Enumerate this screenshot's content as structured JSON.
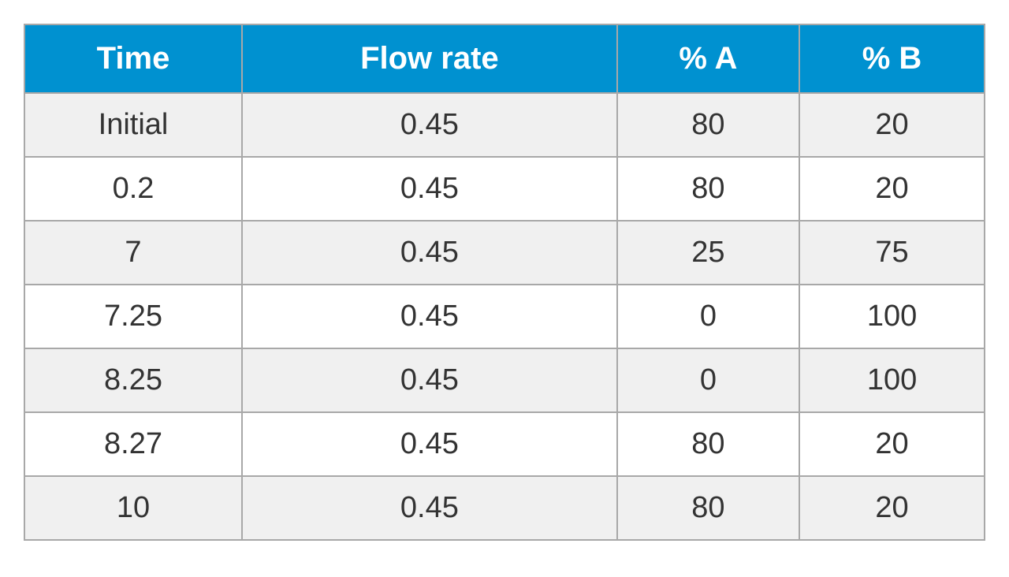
{
  "table": {
    "type": "table",
    "header_bg_color": "#0091d0",
    "header_text_color": "#ffffff",
    "row_odd_bg_color": "#f0f0f0",
    "row_even_bg_color": "#ffffff",
    "border_color": "#a8a8a8",
    "cell_text_color": "#333333",
    "header_fontsize": 40,
    "cell_fontsize": 38,
    "columns": [
      "Time",
      "Flow rate",
      "% A",
      "% B"
    ],
    "rows": [
      [
        "Initial",
        "0.45",
        "80",
        "20"
      ],
      [
        "0.2",
        "0.45",
        "80",
        "20"
      ],
      [
        "7",
        "0.45",
        "25",
        "75"
      ],
      [
        "7.25",
        "0.45",
        "0",
        "100"
      ],
      [
        "8.25",
        "0.45",
        "0",
        "100"
      ],
      [
        "8.27",
        "0.45",
        "80",
        "20"
      ],
      [
        "10",
        "0.45",
        "80",
        "20"
      ]
    ]
  }
}
